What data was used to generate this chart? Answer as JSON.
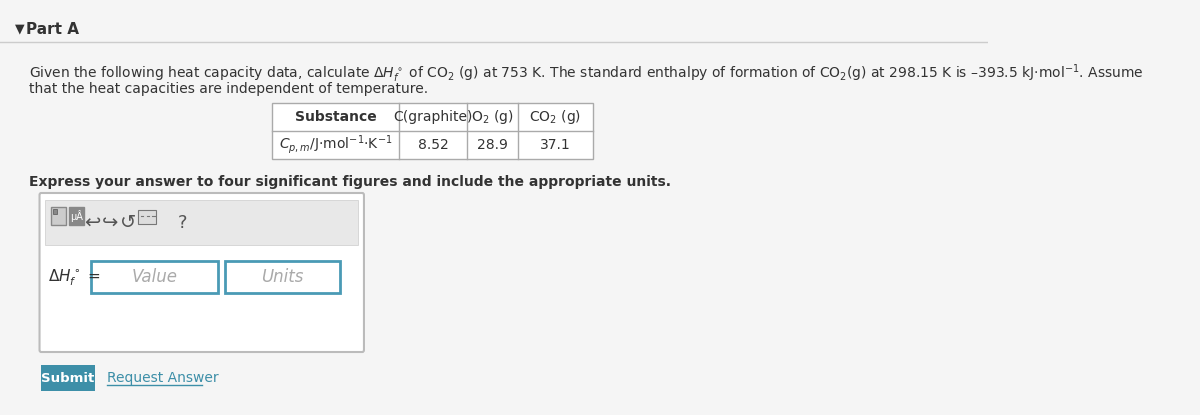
{
  "bg_color": "#f5f5f5",
  "white": "#ffffff",
  "part_a_text": "Part A",
  "problem_text_line1": "Given the following heat capacity data, calculate ΔH°_f of CO₂ (g) at 753 K. The standard enthalpy of formation of CO₂(g) at 298.15 K is –393.5 kJ·mol⁻¹. Assume",
  "problem_text_line2": "that the heat capacities are independent of temperature.",
  "table_header_col0": "Substance",
  "table_header_col1": "C(graphite)",
  "table_header_col2": "O₂ (g)",
  "table_header_col3": "CO₂ (g)",
  "table_row_label": "Cₚ,m/J·mol⁻¹·K⁻¹",
  "table_val1": "8.52",
  "table_val2": "28.9",
  "table_val3": "37.1",
  "express_text": "Express your answer to four significant figures and include the appropriate units.",
  "delta_h_label": "ΔH°_f =",
  "value_placeholder": "Value",
  "units_placeholder": "Units",
  "submit_text": "Submit",
  "request_answer_text": "Request Answer",
  "submit_bg": "#3d8fa8",
  "submit_text_color": "#ffffff",
  "border_color": "#cccccc",
  "input_border_color": "#4a9ab5",
  "toolbar_bg": "#e8e8e8"
}
